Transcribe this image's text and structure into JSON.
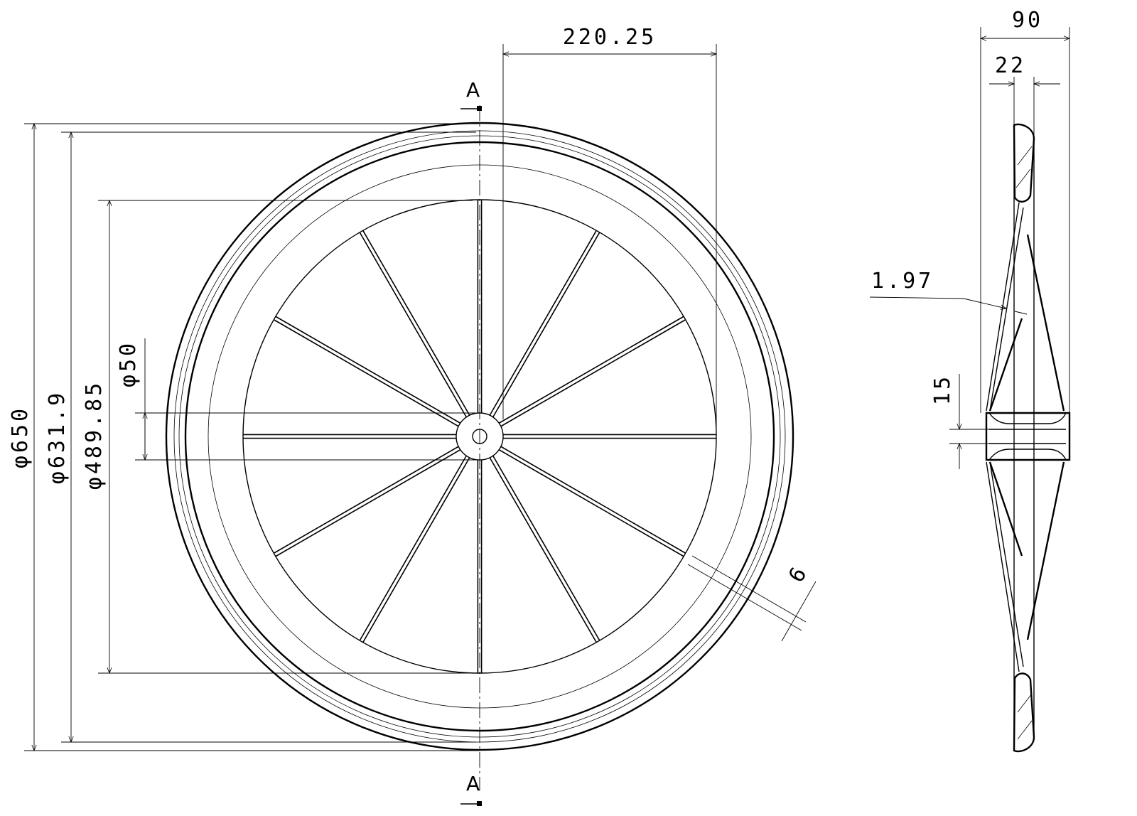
{
  "section_labels": {
    "top": "A",
    "bottom": "A"
  },
  "dimensions": {
    "d650": "φ650",
    "d631": "φ631.9",
    "d489": "φ489.85",
    "d50": "φ50",
    "r220": "220.25",
    "w90": "90",
    "w22": "22",
    "t197": "1.97",
    "h15": "15",
    "t6": "6"
  },
  "wheel": {
    "spoke_count": 12
  }
}
